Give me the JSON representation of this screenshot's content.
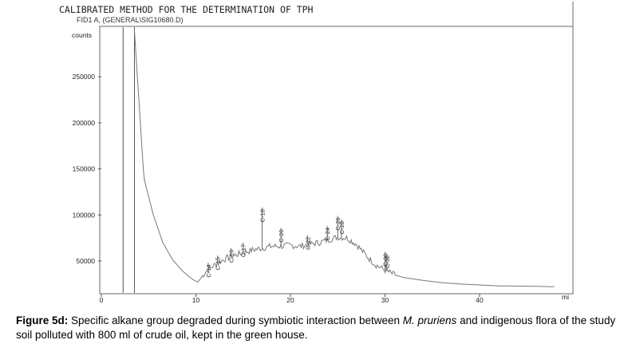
{
  "header": {
    "method_title": "CALIBRATED METHOD FOR THE DETERMINATION OF TPH",
    "signal_label": "FID1 A, (GENERAL\\SIG10680.D)"
  },
  "chart_data": {
    "type": "line",
    "title": "CALIBRATED METHOD FOR THE DETERMINATION OF TPH",
    "subtitle": "FID1 A, (GENERAL\\SIG10680.D)",
    "ylabel": "counts",
    "xlabel": "mi",
    "xlim": [
      0,
      50
    ],
    "ylim": [
      20000,
      300000
    ],
    "y_ticks": [
      {
        "value": 50000,
        "label": "50000"
      },
      {
        "value": 100000,
        "label": "100000"
      },
      {
        "value": 150000,
        "label": "150000"
      },
      {
        "value": 200000,
        "label": "200000"
      },
      {
        "value": 250000,
        "label": "250000"
      }
    ],
    "x_ticks": [
      {
        "value": 0,
        "label": "0"
      },
      {
        "value": 10,
        "label": "10"
      },
      {
        "value": 20,
        "label": "20"
      },
      {
        "value": 30,
        "label": "30"
      },
      {
        "value": 40,
        "label": "40"
      }
    ],
    "solvent_peaks": [
      2.3,
      3.5
    ],
    "baseline": [
      [
        3.5,
        300000
      ],
      [
        4.5,
        140000
      ],
      [
        5.5,
        100000
      ],
      [
        6.5,
        70000
      ],
      [
        7.5,
        52000
      ],
      [
        8.5,
        40000
      ],
      [
        9.5,
        31000
      ],
      [
        10.2,
        27000
      ],
      [
        11,
        38000
      ],
      [
        12,
        46000
      ],
      [
        13,
        52000
      ],
      [
        14,
        56000
      ],
      [
        15,
        59000
      ],
      [
        16,
        62000
      ],
      [
        17,
        64000
      ],
      [
        18,
        66000
      ],
      [
        19,
        66000
      ],
      [
        20,
        67000
      ],
      [
        21,
        66000
      ],
      [
        22,
        68000
      ],
      [
        23,
        70000
      ],
      [
        24,
        73000
      ],
      [
        25,
        76000
      ],
      [
        26,
        75000
      ],
      [
        27,
        68000
      ],
      [
        28,
        56000
      ],
      [
        29,
        46000
      ],
      [
        30,
        40000
      ],
      [
        31,
        35000
      ],
      [
        32,
        32000
      ],
      [
        34,
        29000
      ],
      [
        36,
        26500
      ],
      [
        38,
        25000
      ],
      [
        40,
        24000
      ],
      [
        42,
        23000
      ],
      [
        46,
        22500
      ],
      [
        48,
        22000
      ]
    ],
    "peaks": [
      {
        "x": 11.3,
        "label": "C-14",
        "height": 48000
      },
      {
        "x": 12.3,
        "label": "C-15",
        "height": 56000
      },
      {
        "x": 13.7,
        "label": "C-16",
        "height": 64000
      },
      {
        "x": 15.0,
        "label": "C-17",
        "height": 70000
      },
      {
        "x": 17.0,
        "label": "C-18",
        "height": 108000
      },
      {
        "x": 19.0,
        "label": "C-20",
        "height": 86000
      },
      {
        "x": 21.8,
        "label": "C-22",
        "height": 78000
      },
      {
        "x": 23.9,
        "label": "C-24",
        "height": 88000
      },
      {
        "x": 25.0,
        "label": "C-26",
        "height": 99000
      },
      {
        "x": 25.4,
        "label": "C-28",
        "height": 95000
      },
      {
        "x": 30.0,
        "label": "C-30",
        "height": 60000
      },
      {
        "x": 30.2,
        "label": "C-32",
        "height": 58000
      }
    ]
  },
  "caption": {
    "label": "Figure 5d:",
    "text_1": " Specific alkane group degraded during symbiotic interaction between ",
    "species": "M. pruriens",
    "text_2": " and indigenous flora of the study soil polluted with 800 ml of crude oil, kept in the green house."
  }
}
